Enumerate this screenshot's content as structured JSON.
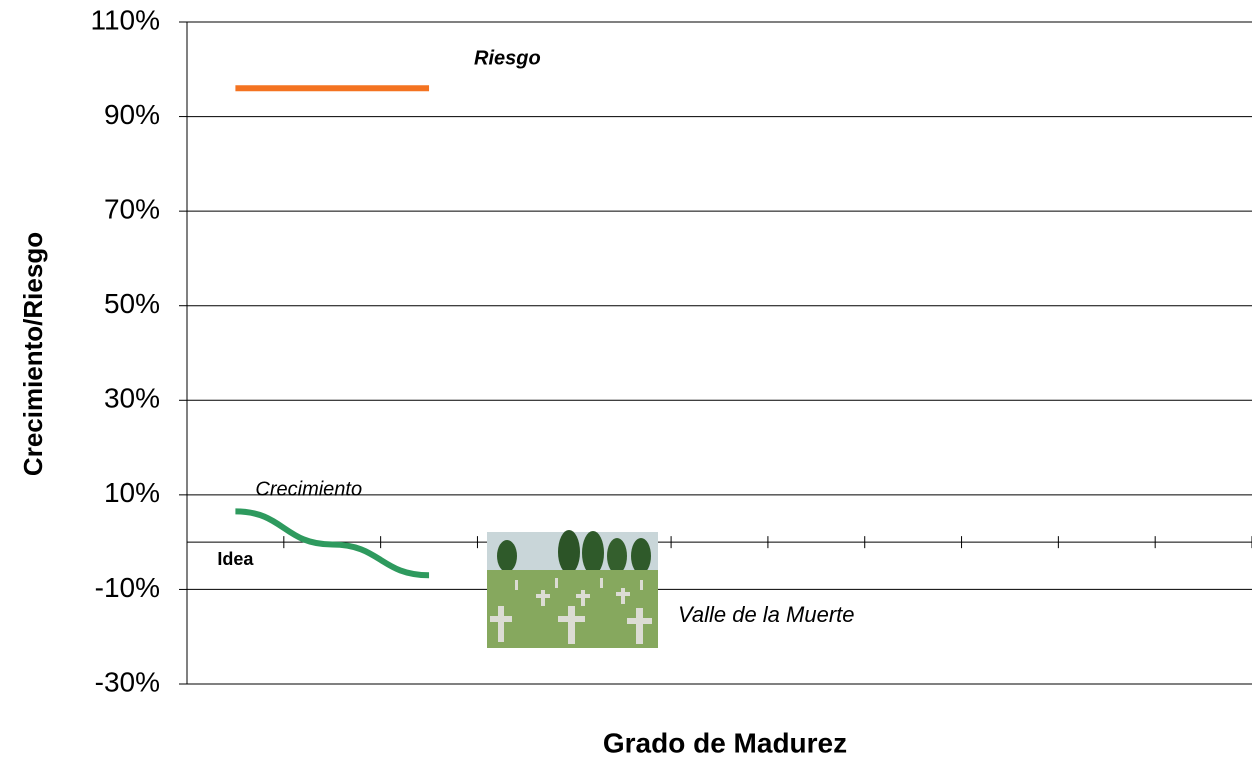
{
  "chart_data": {
    "type": "line",
    "x_label": "Grado de Madurez",
    "y_label": "Crecimiento/Riesgo",
    "categories": [
      "Idea",
      null,
      null,
      null,
      null,
      null,
      null,
      null,
      null,
      null,
      null
    ],
    "series": [
      {
        "name": "Riesgo",
        "color": "#f47321",
        "values": [
          96,
          96,
          96,
          null,
          null,
          null,
          null,
          null,
          null,
          null,
          null
        ]
      },
      {
        "name": "Crecimiento",
        "color": "#2e9a5e",
        "values": [
          6.5,
          -0.5,
          -7,
          null,
          null,
          null,
          null,
          null,
          null,
          null,
          null
        ]
      }
    ],
    "annotations": [
      "Valle de la Muerte"
    ],
    "ylim": [
      -30,
      110
    ],
    "yticks": [
      {
        "value": 110,
        "label": "110%"
      },
      {
        "value": 90,
        "label": "90%"
      },
      {
        "value": 70,
        "label": "70%"
      },
      {
        "value": 50,
        "label": "50%"
      },
      {
        "value": 30,
        "label": "30%"
      },
      {
        "value": 10,
        "label": "10%"
      },
      {
        "value": -10,
        "label": "-10%"
      },
      {
        "value": -30,
        "label": "-30%"
      }
    ],
    "grid": true
  }
}
